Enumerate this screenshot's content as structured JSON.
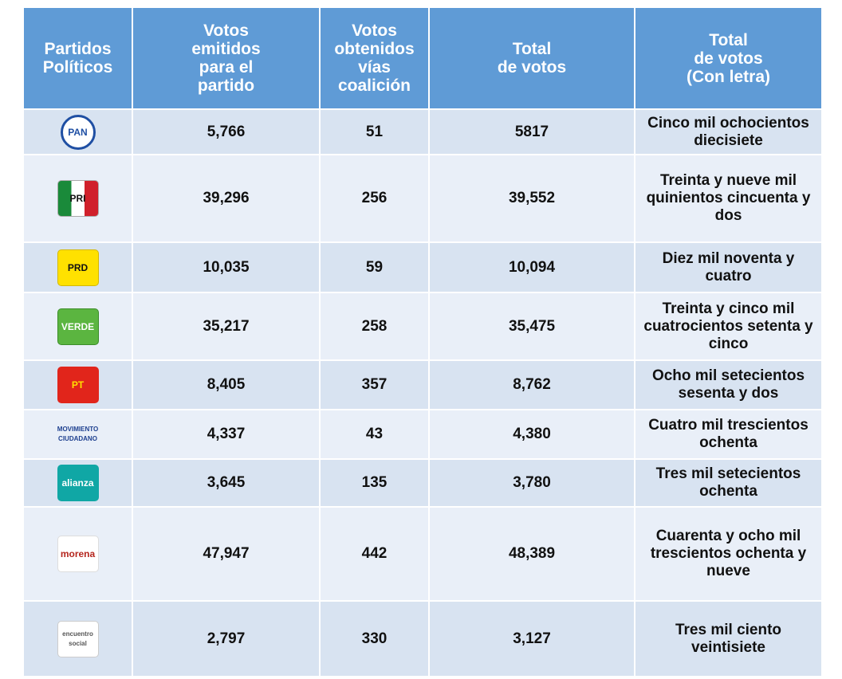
{
  "table": {
    "header": [
      "Partidos\nPolíticos",
      "Votos\nemitidos\npara el\npartido",
      "Votos\nobtenidos\nvías\ncoalición",
      "Total\nde votos",
      "Total\nde votos\n(Con letra)"
    ],
    "rows": [
      [
        "PAN",
        "5,766",
        "51",
        "5817",
        "Cinco mil ochocientos diecisiete"
      ],
      [
        "PRI",
        "39,296",
        "256",
        "39,552",
        "Treinta y nueve mil quinientos cincuenta y dos"
      ],
      [
        "PRD",
        "10,035",
        "59",
        "10,094",
        "Diez mil noventa y cuatro"
      ],
      [
        "VERDE",
        "35,217",
        "258",
        "35,475",
        "Treinta y cinco mil cuatrocientos setenta y cinco"
      ],
      [
        "PT",
        "8,405",
        "357",
        "8,762",
        "Ocho mil setecientos sesenta y dos"
      ],
      [
        "MOVIMIENTO CIUDADANO",
        "4,337",
        "43",
        "4,380",
        "Cuatro mil trescientos ochenta"
      ],
      [
        "alianza",
        "3,645",
        "135",
        "3,780",
        "Tres mil setecientos ochenta"
      ],
      [
        "morena",
        "47,947",
        "442",
        "48,389",
        "Cuarenta y ocho mil trescientos ochenta y nueve"
      ],
      [
        "encuentro social",
        "2,797",
        "330",
        "3,127",
        "Tres mil ciento veintisiete"
      ]
    ]
  }
}
